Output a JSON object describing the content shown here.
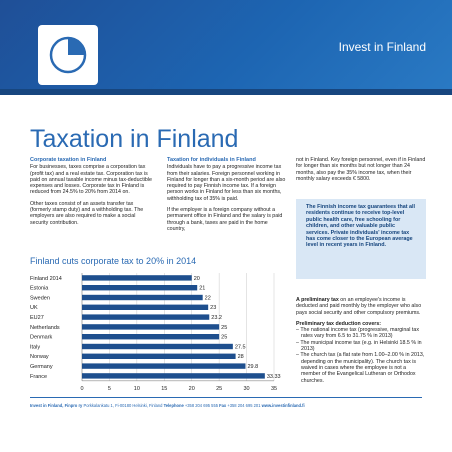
{
  "header": {
    "title": "Invest in Finland"
  },
  "page": {
    "title": "Taxation in Finland"
  },
  "corporate": {
    "heading": "Corporate taxation in Finland",
    "p1": "For businesses, taxes comprise a corporation tax (profit tax) and a real estate tax. Corporation tax is paid on annual taxable income minus tax-deductible expenses and losses. Corporate tax in Finland is reduced from 24.5% to 20% from 2014 on.",
    "p2": "Other taxes consist of an assets transfer tax (formerly stamp duty) and a withholding tax. The employers are also required to make a social security contribution."
  },
  "individuals": {
    "heading": "Taxation for individuals in Finland",
    "p1": "Individuals have to pay a progressive income tax from their salaries. Foreign personnel working in Finland for longer than a six-month period are also required to pay Finnish income tax. If a foreign person works in Finland for less than six months, withholding tax of 35% is paid.",
    "p2": "If the employer is a foreign company without a permanent office in Finland and the salary is paid through a bank, taxes are paid in the home country,"
  },
  "col3": {
    "p1": "not in Finland. Key foreign personnel, even if in Finland for longer than six months but not longer than 24 months, also pay the 35% income tax, when their monthly salary exceeds € 5800."
  },
  "callout": {
    "text": "The Finnish income tax guarantees that all residents continue to receive top-level public health care, free schooling for children, and other valuable public services. Private individuals' income tax has come closer to the European average level in recent years in Finland."
  },
  "prelim": {
    "lead": "A preliminary tax",
    "text": " on an employee's income is deducted and paid monthly by the employer who also pays social security and other compulsory premiums.",
    "deductions_heading": "Preliminary tax deduction covers:",
    "items": [
      "– The national income tax (progressive, marginal tax rates vary from 6.5 to 31.75 % in 2013)",
      "– The municipal income tax (e.g. in Helsinki 18.5 % in 2013)",
      "– The church tax (a flat rate from 1.00–2.00 % in 2013, depending on the municipality). The church tax is waived in cases where the employee is not a member of the Evangelical Lutheran or Orthodox churches."
    ]
  },
  "chart_data": {
    "type": "bar",
    "orientation": "horizontal",
    "title": "Finland cuts corporate tax to 20% in 2014",
    "categories": [
      "Finland 2014",
      "Estonia",
      "Sweden",
      "UK",
      "EU27",
      "Netherlands",
      "Denmark",
      "Italy",
      "Norway",
      "Germany",
      "France"
    ],
    "values": [
      20,
      21,
      22,
      23,
      23.2,
      25,
      25,
      27.5,
      28,
      29.8,
      33.33
    ],
    "value_labels": [
      "20",
      "21",
      "22",
      "23",
      "23.2",
      "25",
      "25",
      "27.5",
      "28",
      "29.8",
      "33.33"
    ],
    "xlim": [
      0,
      35
    ],
    "xticks": [
      "0",
      "5",
      "10",
      "15",
      "20",
      "25",
      "30",
      "35"
    ],
    "bar_color": "#1e4f8e",
    "grid": true
  },
  "footer": {
    "org": "Invest in Finland, Finpro ry",
    "address": " Porkkalankatu 1, Fi-00180 Helsinki, Finland ",
    "tel_label": "Telephone",
    "tel": " +358 204 695 555 ",
    "fax_label": "Fax",
    "fax": " +358 204 695 201 ",
    "web": "www.investinfinland.fi"
  },
  "colors": {
    "brand_blue": "#2a6ab3",
    "callout_bg": "#d9e7f5",
    "bar": "#1e4f8e"
  }
}
